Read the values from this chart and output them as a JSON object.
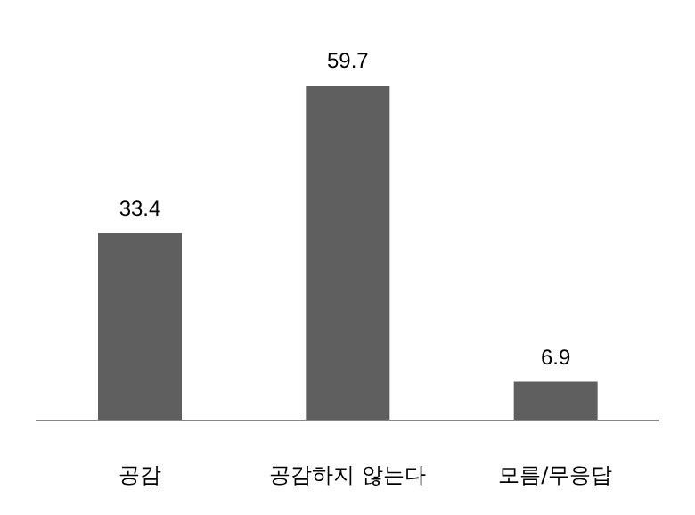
{
  "chart_data": {
    "type": "bar",
    "categories": [
      "공감",
      "공감하지 않는다",
      "모름/무응답"
    ],
    "values": [
      33.4,
      59.7,
      6.9
    ],
    "color": "#5f5f5f",
    "data_labels": true,
    "grid": false,
    "legend": false
  }
}
